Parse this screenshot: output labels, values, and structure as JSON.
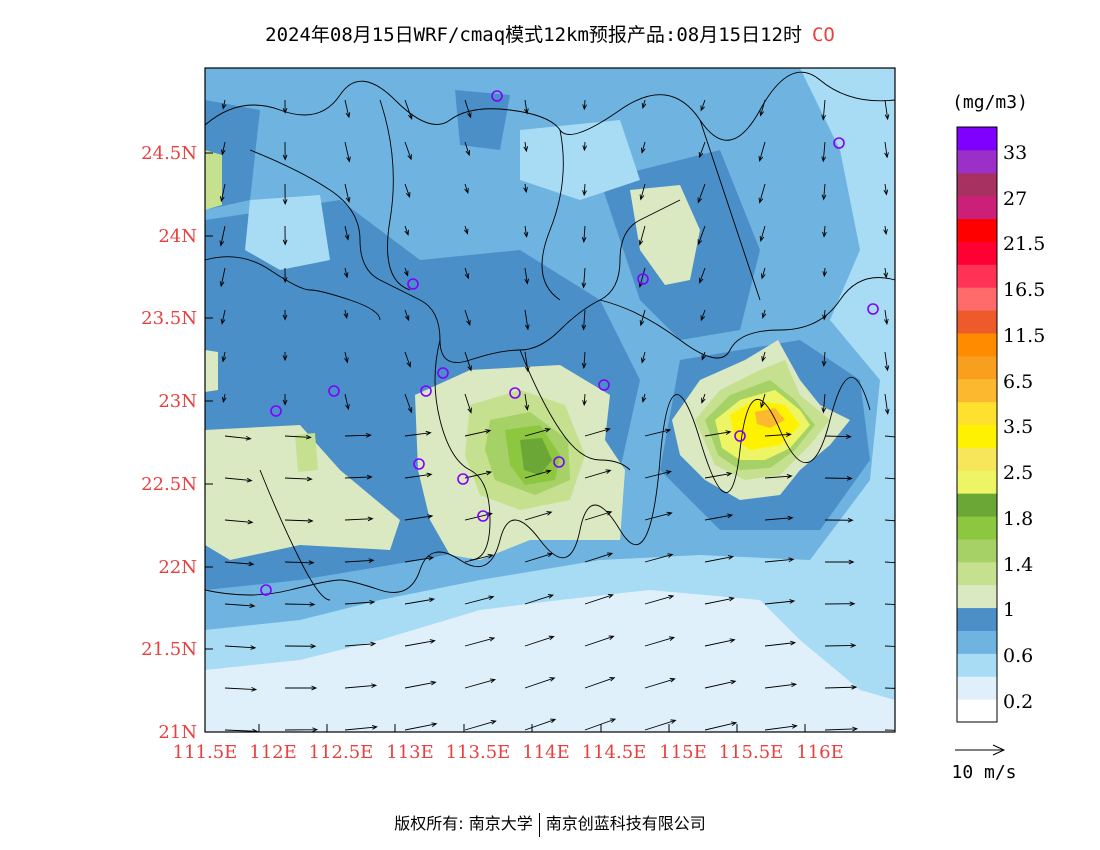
{
  "header": {
    "title": "2024年08月15日WRF/cmaq模式12km预报产品:08月15日12时",
    "species": "CO"
  },
  "axes": {
    "lat_ticks": [
      "24.5N",
      "24N",
      "23.5N",
      "23N",
      "22.5N",
      "22N",
      "21.5N",
      "21N"
    ],
    "lon_ticks": [
      "111.5E",
      "112E",
      "112.5E",
      "113E",
      "113.5E",
      "114E",
      "114.5E",
      "115E",
      "115.5E",
      "116E"
    ]
  },
  "colorbar": {
    "unit": "(mg/m3)",
    "labels": [
      "33",
      "27",
      "21.5",
      "16.5",
      "11.5",
      "6.5",
      "3.5",
      "2.5",
      "1.8",
      "1.4",
      "1",
      "0.6",
      "0.2"
    ],
    "colors": [
      "#ffffff",
      "#dff0fa",
      "#a8dcf5",
      "#6fb3e0",
      "#4a8fc8",
      "#dbe9c2",
      "#c5e08f",
      "#a6d167",
      "#8dc63f",
      "#6aa736",
      "#eef564",
      "#f6e65a",
      "#fff200",
      "#fee02e",
      "#fcb82e",
      "#f89f1f",
      "#ff8c00",
      "#ee5a2a",
      "#ff6b6b",
      "#ff3355",
      "#ff0033",
      "#ff0000",
      "#cc1f77",
      "#a73160",
      "#9b30c9",
      "#8000ff"
    ]
  },
  "legend": {
    "wind_scale": "10 m/s"
  },
  "footer": {
    "copyright_prefix": "版权所有:",
    "org1": "南京大学",
    "org2": "南京创蓝科技有限公司"
  }
}
